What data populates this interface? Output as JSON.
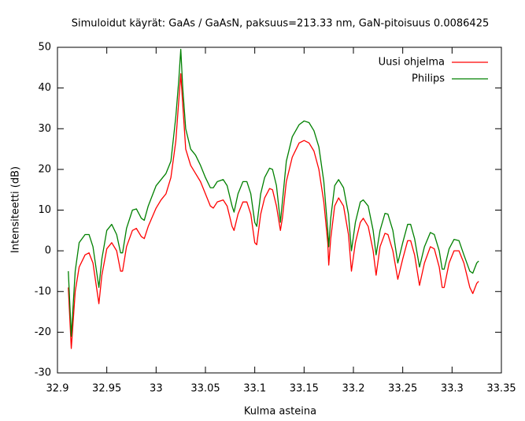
{
  "chart_data": {
    "type": "line",
    "title": "Simuloidut käyrät: GaAs / GaAsN, paksuus=213.33 nm, GaN-pitoisuus 0.0086425",
    "x_label": "Kulma asteina",
    "y_label": "Intensiteetti (dB)",
    "xlim": [
      32.9,
      33.35
    ],
    "xticks": [
      32.9,
      32.95,
      33,
      33.05,
      33.1,
      33.15,
      33.2,
      33.25,
      33.3,
      33.35
    ],
    "ylim": [
      -30,
      50
    ],
    "yticks": [
      -30,
      -20,
      -10,
      0,
      10,
      20,
      30,
      40,
      50
    ],
    "grid": false,
    "legend": "top-right",
    "x": [
      32.911,
      32.914,
      32.918,
      32.922,
      32.928,
      32.932,
      32.936,
      32.942,
      32.945,
      32.95,
      32.955,
      32.96,
      32.964,
      32.966,
      32.97,
      32.976,
      32.98,
      32.985,
      32.988,
      32.992,
      33.0,
      33.005,
      33.01,
      33.015,
      33.02,
      33.023,
      33.025,
      33.027,
      33.03,
      33.035,
      33.04,
      33.045,
      33.05,
      33.055,
      33.058,
      33.062,
      33.068,
      33.072,
      33.077,
      33.079,
      33.083,
      33.088,
      33.092,
      33.096,
      33.1,
      33.102,
      33.106,
      33.11,
      33.115,
      33.118,
      33.122,
      33.126,
      33.128,
      33.132,
      33.138,
      33.145,
      33.15,
      33.155,
      33.16,
      33.165,
      33.17,
      33.174,
      33.175,
      33.177,
      33.181,
      33.185,
      33.19,
      33.195,
      33.198,
      33.202,
      33.207,
      33.21,
      33.215,
      33.22,
      33.223,
      33.227,
      33.232,
      33.235,
      33.24,
      33.245,
      33.25,
      33.255,
      33.258,
      33.262,
      33.267,
      33.272,
      33.278,
      33.282,
      33.287,
      33.29,
      33.292,
      33.297,
      33.302,
      33.307,
      33.312,
      33.318,
      33.321,
      33.325,
      33.327
    ],
    "series": [
      {
        "name": "Uusi ohjelma",
        "color": "#ff0000",
        "values": [
          -9,
          -24,
          -10,
          -4,
          -1,
          -0.5,
          -3,
          -13,
          -6,
          0.5,
          2,
          0,
          -5,
          -5,
          1,
          5,
          5.5,
          3.5,
          3,
          6,
          10.5,
          12.5,
          14,
          18,
          27,
          37,
          43.5,
          36,
          25,
          21,
          19,
          17,
          14,
          11,
          10.5,
          12,
          12.5,
          11,
          6,
          5,
          9,
          12,
          12,
          9,
          2,
          1.5,
          9,
          13,
          15.3,
          15,
          11,
          5,
          8,
          17,
          23,
          26.5,
          27.1,
          26.5,
          24.5,
          20,
          12,
          2,
          -3.5,
          3,
          11,
          13,
          11,
          4,
          -5,
          2,
          7,
          8,
          6,
          0,
          -6,
          1,
          4.3,
          4,
          0,
          -7,
          -2,
          2.5,
          2.5,
          -1,
          -8.5,
          -3,
          1,
          0.5,
          -4,
          -9,
          -9,
          -3,
          0,
          0,
          -3,
          -9,
          -10.5,
          -8,
          -7.5
        ]
      },
      {
        "name": "Philips",
        "color": "#008000",
        "values": [
          -5,
          -21,
          -5,
          2,
          4,
          4,
          1,
          -9,
          -2,
          5,
          6.5,
          4,
          -0.5,
          -0.5,
          5.5,
          10,
          10.3,
          8,
          7.5,
          11,
          16,
          17.5,
          19,
          22,
          33,
          42,
          49.5,
          40,
          30,
          25,
          23.5,
          21,
          18,
          15.5,
          15.5,
          17,
          17.5,
          16,
          11,
          9.5,
          14,
          17,
          17,
          14,
          7,
          6,
          14,
          18,
          20.3,
          20,
          16,
          7,
          12,
          22,
          28,
          31,
          31.9,
          31.5,
          29.5,
          25.5,
          17,
          5,
          1,
          8,
          16,
          17.5,
          15.5,
          9,
          0,
          7,
          12,
          12.5,
          11,
          5,
          -1,
          5,
          9.2,
          9,
          5,
          -3,
          2,
          6.5,
          6.5,
          3,
          -4,
          1,
          4.5,
          4,
          0,
          -4.5,
          -4.5,
          0.5,
          2.8,
          2.5,
          -1,
          -5,
          -5.5,
          -3,
          -2.5
        ]
      }
    ]
  }
}
